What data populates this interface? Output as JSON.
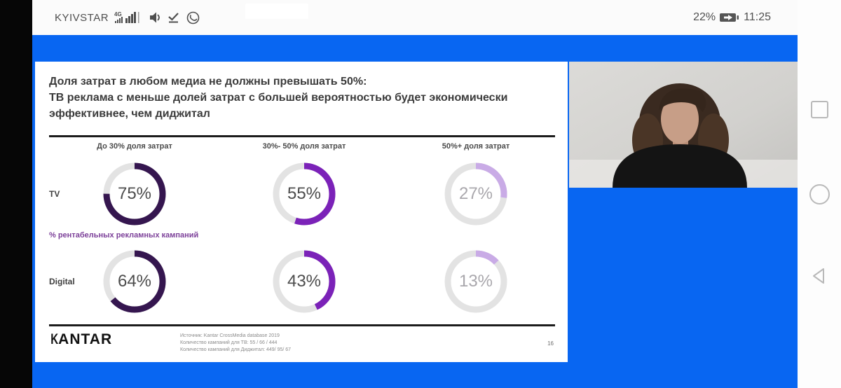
{
  "status_bar": {
    "carrier": "KYIVSTAR",
    "network_badge": "4G",
    "battery_percent": "22%",
    "time": "11:25",
    "icons": [
      "signal-bars",
      "volume",
      "check-underline",
      "viber-phone",
      "battery-charging"
    ]
  },
  "nav_bar": {
    "icons": [
      "recents-square",
      "home-circle",
      "back-triangle"
    ]
  },
  "slide": {
    "title": "Доля затрат в любом медиа не должны превышать 50%:\nТВ реклама с меньше долей затрат с большей вероятностью будет экономически\nэффективнее, чем диджитал",
    "column_headers": [
      "До 30% доля затрат",
      "30%- 50% доля затрат",
      "50%+ доля затрат"
    ],
    "metric_label": "% рентабельных рекламных кампаний",
    "row_labels": [
      "TV",
      "Digital"
    ],
    "footer": {
      "logo": "KANTAR",
      "source_line1": "Источник: Kantar CrossMedia database 2019",
      "source_line2": "Количество кампаний для ТВ: 55 / 66 / 444",
      "source_line3": "Количество кампаний для Диджитал: 449/ 95/ 67",
      "page_number": "16"
    }
  },
  "chart_data": {
    "type": "pie",
    "subtype": "donut-grid",
    "title": "Доля затрат в любом медиа не должны превышать 50%",
    "metric": "% рентабельных рекламных кампаний",
    "columns": [
      "До 30% доля затрат",
      "30%- 50% доля затрат",
      "50%+ доля затрат"
    ],
    "rows": [
      "TV",
      "Digital"
    ],
    "unit": "%",
    "values": [
      [
        75,
        55,
        27
      ],
      [
        64,
        43,
        13
      ]
    ],
    "labels": [
      [
        "75%",
        "55%",
        "27%"
      ],
      [
        "64%",
        "43%",
        "13%"
      ]
    ],
    "colors": [
      "#35164f",
      "#7b22b8",
      "#c9abe6"
    ],
    "track_color": "#e3e3e3",
    "value_text_colors": [
      "#4d4d4d",
      "#4d4d4d",
      "#a9a7ac"
    ]
  },
  "colors": {
    "app_blue": "#0866f2",
    "slide_white": "#ffffff",
    "brand_purple_dark": "#35164f",
    "brand_purple_mid": "#7b22b8",
    "brand_purple_light": "#c9abe6"
  }
}
